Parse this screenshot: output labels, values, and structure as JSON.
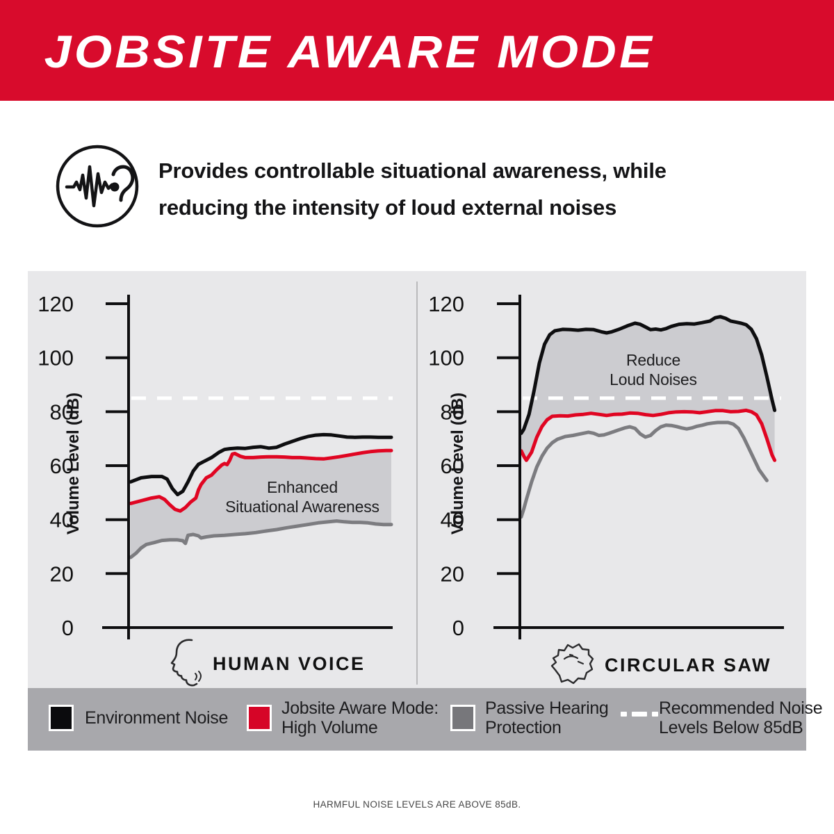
{
  "header": {
    "title": "JOBSITE AWARE MODE",
    "accent_color": "#d80b2c"
  },
  "intro": {
    "icon": "ear-soundwave-icon",
    "line1": "Provides controllable situational awareness, while",
    "line2": "reducing the intensity of loud external noises"
  },
  "chart_data": [
    {
      "type": "area",
      "xlabel": "HUMAN VOICE",
      "ylabel": "Volume Level (dB)",
      "yticks": [
        0,
        20,
        40,
        60,
        80,
        100,
        120
      ],
      "ylim": [
        0,
        125
      ],
      "grid": false,
      "threshold": {
        "value": 85,
        "style": "dashed-white",
        "label": "Recommended Noise Levels Below 85dB"
      },
      "annotation": {
        "lines": [
          "Enhanced",
          "Situational Awareness"
        ]
      },
      "fill_between": {
        "top": "Jobsite Aware Mode: High Volume",
        "bottom": "Passive Hearing Protection",
        "color": "#ccccd0"
      },
      "series": [
        {
          "name": "Environment Noise",
          "color": "#0e0e10",
          "points": [
            [
              0,
              54
            ],
            [
              4,
              55.5
            ],
            [
              8,
              56
            ],
            [
              12,
              56
            ],
            [
              14,
              55
            ],
            [
              16,
              51.5
            ],
            [
              18,
              49.3
            ],
            [
              20,
              50.5
            ],
            [
              22,
              54
            ],
            [
              24,
              58
            ],
            [
              26,
              60.5
            ],
            [
              28,
              61.5
            ],
            [
              31,
              63
            ],
            [
              34,
              65
            ],
            [
              36,
              66
            ],
            [
              38,
              66.3
            ],
            [
              41,
              66.5
            ],
            [
              44,
              66.4
            ],
            [
              47,
              66.8
            ],
            [
              50,
              67
            ],
            [
              53,
              66.5
            ],
            [
              56,
              66.8
            ],
            [
              59,
              68
            ],
            [
              62,
              69
            ],
            [
              65,
              70
            ],
            [
              68,
              70.8
            ],
            [
              71,
              71.3
            ],
            [
              74,
              71.5
            ],
            [
              77,
              71.4
            ],
            [
              80,
              71
            ],
            [
              83,
              70.6
            ],
            [
              86,
              70.5
            ],
            [
              89,
              70.6
            ],
            [
              92,
              70.6
            ],
            [
              95,
              70.5
            ],
            [
              100,
              70.5
            ]
          ]
        },
        {
          "name": "Jobsite Aware Mode: High Volume",
          "color": "#e00522",
          "points": [
            [
              0,
              46
            ],
            [
              4,
              47
            ],
            [
              8,
              48
            ],
            [
              11,
              48.5
            ],
            [
              13,
              47.5
            ],
            [
              15,
              45.5
            ],
            [
              17,
              43.8
            ],
            [
              19,
              43.2
            ],
            [
              21,
              44.5
            ],
            [
              23,
              46.5
            ],
            [
              25,
              48
            ],
            [
              26,
              51
            ],
            [
              27,
              53
            ],
            [
              29,
              55.5
            ],
            [
              31,
              56.5
            ],
            [
              33,
              58.5
            ],
            [
              35,
              60.3
            ],
            [
              36,
              60.8
            ],
            [
              37,
              60.4
            ],
            [
              38,
              62
            ],
            [
              39,
              64.3
            ],
            [
              40,
              64.5
            ],
            [
              42,
              63.5
            ],
            [
              44,
              63
            ],
            [
              47,
              63
            ],
            [
              50,
              63.2
            ],
            [
              53,
              63.3
            ],
            [
              56,
              63.3
            ],
            [
              59,
              63.2
            ],
            [
              62,
              63
            ],
            [
              65,
              63
            ],
            [
              68,
              62.8
            ],
            [
              71,
              62.6
            ],
            [
              74,
              62.5
            ],
            [
              77,
              62.9
            ],
            [
              80,
              63.3
            ],
            [
              83,
              63.8
            ],
            [
              86,
              64.3
            ],
            [
              89,
              64.8
            ],
            [
              92,
              65.2
            ],
            [
              95,
              65.5
            ],
            [
              98,
              65.6
            ],
            [
              100,
              65.6
            ]
          ]
        },
        {
          "name": "Passive Hearing Protection",
          "color": "#7c7c80",
          "points": [
            [
              0,
              26
            ],
            [
              2,
              27.5
            ],
            [
              4,
              29.5
            ],
            [
              6,
              30.8
            ],
            [
              9,
              31.5
            ],
            [
              12,
              32.3
            ],
            [
              15,
              32.5
            ],
            [
              18,
              32.5
            ],
            [
              20,
              32.2
            ],
            [
              21,
              31.2
            ],
            [
              22,
              34.2
            ],
            [
              24,
              34.5
            ],
            [
              26,
              34
            ],
            [
              27,
              33.2
            ],
            [
              29,
              33.6
            ],
            [
              32,
              34
            ],
            [
              36,
              34.2
            ],
            [
              40,
              34.5
            ],
            [
              44,
              34.8
            ],
            [
              48,
              35.2
            ],
            [
              52,
              35.8
            ],
            [
              56,
              36.3
            ],
            [
              60,
              37
            ],
            [
              64,
              37.6
            ],
            [
              68,
              38.2
            ],
            [
              72,
              38.8
            ],
            [
              76,
              39.2
            ],
            [
              79,
              39.5
            ],
            [
              82,
              39.2
            ],
            [
              85,
              39
            ],
            [
              88,
              39
            ],
            [
              91,
              38.8
            ],
            [
              94,
              38.4
            ],
            [
              97,
              38.2
            ],
            [
              100,
              38.2
            ]
          ]
        }
      ]
    },
    {
      "type": "area",
      "xlabel": "CIRCULAR SAW",
      "ylabel": "Volume Level (dB)",
      "yticks": [
        0,
        20,
        40,
        60,
        80,
        100,
        120
      ],
      "ylim": [
        0,
        125
      ],
      "grid": false,
      "threshold": {
        "value": 85,
        "style": "dashed-white",
        "label": "Recommended Noise Levels Below 85dB"
      },
      "annotation": {
        "lines": [
          "Reduce",
          "Loud Noises"
        ]
      },
      "fill_between": {
        "top": "Environment Noise",
        "bottom": "Jobsite Aware Mode: High Volume",
        "color": "#ccccd0"
      },
      "series": [
        {
          "name": "Environment Noise",
          "color": "#0e0e10",
          "points": [
            [
              0,
              72
            ],
            [
              1,
              73.5
            ],
            [
              3,
              79
            ],
            [
              5,
              88
            ],
            [
              7,
              98
            ],
            [
              9,
              105
            ],
            [
              11,
              108.5
            ],
            [
              13,
              110
            ],
            [
              16,
              110.5
            ],
            [
              19,
              110.4
            ],
            [
              22,
              110.2
            ],
            [
              25,
              110.5
            ],
            [
              28,
              110.4
            ],
            [
              31,
              109.6
            ],
            [
              33,
              109.2
            ],
            [
              35,
              109.6
            ],
            [
              38,
              110.6
            ],
            [
              41,
              111.8
            ],
            [
              44,
              112.8
            ],
            [
              46,
              112.4
            ],
            [
              48,
              111.4
            ],
            [
              50,
              110.4
            ],
            [
              52,
              110.6
            ],
            [
              54,
              110.3
            ],
            [
              56,
              110.8
            ],
            [
              58,
              111.6
            ],
            [
              61,
              112.4
            ],
            [
              64,
              112.6
            ],
            [
              67,
              112.5
            ],
            [
              70,
              113
            ],
            [
              73,
              113.6
            ],
            [
              75,
              114.8
            ],
            [
              77,
              115.2
            ],
            [
              79,
              114.6
            ],
            [
              81,
              113.6
            ],
            [
              83,
              113.2
            ],
            [
              85,
              112.8
            ],
            [
              87,
              112.2
            ],
            [
              89,
              110.5
            ],
            [
              91,
              107
            ],
            [
              93,
              101
            ],
            [
              95,
              93
            ],
            [
              97,
              84.5
            ],
            [
              98,
              80.5
            ]
          ]
        },
        {
          "name": "Jobsite Aware Mode: High Volume",
          "color": "#e00522",
          "points": [
            [
              0,
              65.5
            ],
            [
              1,
              63.5
            ],
            [
              2,
              62
            ],
            [
              4,
              65
            ],
            [
              6,
              70.5
            ],
            [
              8,
              74.5
            ],
            [
              10,
              77
            ],
            [
              12,
              78.3
            ],
            [
              15,
              78.5
            ],
            [
              18,
              78.4
            ],
            [
              21,
              78.8
            ],
            [
              24,
              79
            ],
            [
              27,
              79.4
            ],
            [
              30,
              79
            ],
            [
              33,
              78.6
            ],
            [
              36,
              79
            ],
            [
              39,
              79.1
            ],
            [
              42,
              79.5
            ],
            [
              45,
              79.4
            ],
            [
              48,
              78.9
            ],
            [
              51,
              78.6
            ],
            [
              54,
              79
            ],
            [
              57,
              79.6
            ],
            [
              60,
              79.9
            ],
            [
              63,
              80
            ],
            [
              66,
              79.9
            ],
            [
              69,
              79.6
            ],
            [
              72,
              80
            ],
            [
              75,
              80.4
            ],
            [
              78,
              80.4
            ],
            [
              81,
              80
            ],
            [
              84,
              80.1
            ],
            [
              87,
              80.5
            ],
            [
              89,
              80
            ],
            [
              91,
              78.8
            ],
            [
              93,
              75.5
            ],
            [
              95,
              70
            ],
            [
              97,
              64
            ],
            [
              98,
              62
            ]
          ]
        },
        {
          "name": "Passive Hearing Protection",
          "color": "#7c7c80",
          "points": [
            [
              0,
              41
            ],
            [
              1,
              44
            ],
            [
              2,
              47.5
            ],
            [
              4,
              54
            ],
            [
              6,
              59.5
            ],
            [
              8,
              63.5
            ],
            [
              10,
              66.5
            ],
            [
              12,
              68.5
            ],
            [
              14,
              69.8
            ],
            [
              17,
              70.8
            ],
            [
              20,
              71.2
            ],
            [
              23,
              71.8
            ],
            [
              26,
              72.4
            ],
            [
              28,
              72
            ],
            [
              30,
              71.2
            ],
            [
              32,
              71.4
            ],
            [
              34,
              72
            ],
            [
              37,
              73
            ],
            [
              40,
              74
            ],
            [
              42,
              74.4
            ],
            [
              44,
              73.8
            ],
            [
              46,
              71.8
            ],
            [
              48,
              70.6
            ],
            [
              50,
              71.2
            ],
            [
              52,
              73
            ],
            [
              54,
              74.4
            ],
            [
              56,
              75
            ],
            [
              58,
              74.9
            ],
            [
              60,
              74.5
            ],
            [
              62,
              74
            ],
            [
              64,
              73.6
            ],
            [
              66,
              74
            ],
            [
              68,
              74.6
            ],
            [
              70,
              75
            ],
            [
              72,
              75.5
            ],
            [
              74,
              75.8
            ],
            [
              76,
              76
            ],
            [
              78,
              76
            ],
            [
              80,
              76
            ],
            [
              82,
              75.4
            ],
            [
              84,
              73.8
            ],
            [
              86,
              70.5
            ],
            [
              88,
              66.5
            ],
            [
              90,
              62.5
            ],
            [
              92,
              58.5
            ],
            [
              94,
              55.8
            ],
            [
              95,
              54.5
            ]
          ]
        }
      ]
    }
  ],
  "legend": {
    "items": [
      {
        "symbol": "swatch",
        "color": "#0b0b0d",
        "lines": [
          "Environment Noise"
        ]
      },
      {
        "symbol": "swatch",
        "color": "#d60527",
        "lines": [
          "Jobsite Aware Mode:",
          "High Volume"
        ]
      },
      {
        "symbol": "swatch",
        "color": "#77777b",
        "lines": [
          "Passive Hearing",
          "Protection"
        ]
      },
      {
        "symbol": "dashed-line",
        "color": "#ffffff",
        "lines": [
          "Recommended Noise",
          "Levels Below 85dB"
        ]
      }
    ]
  },
  "footer": {
    "note": "HARMFUL NOISE LEVELS ARE ABOVE 85dB."
  }
}
